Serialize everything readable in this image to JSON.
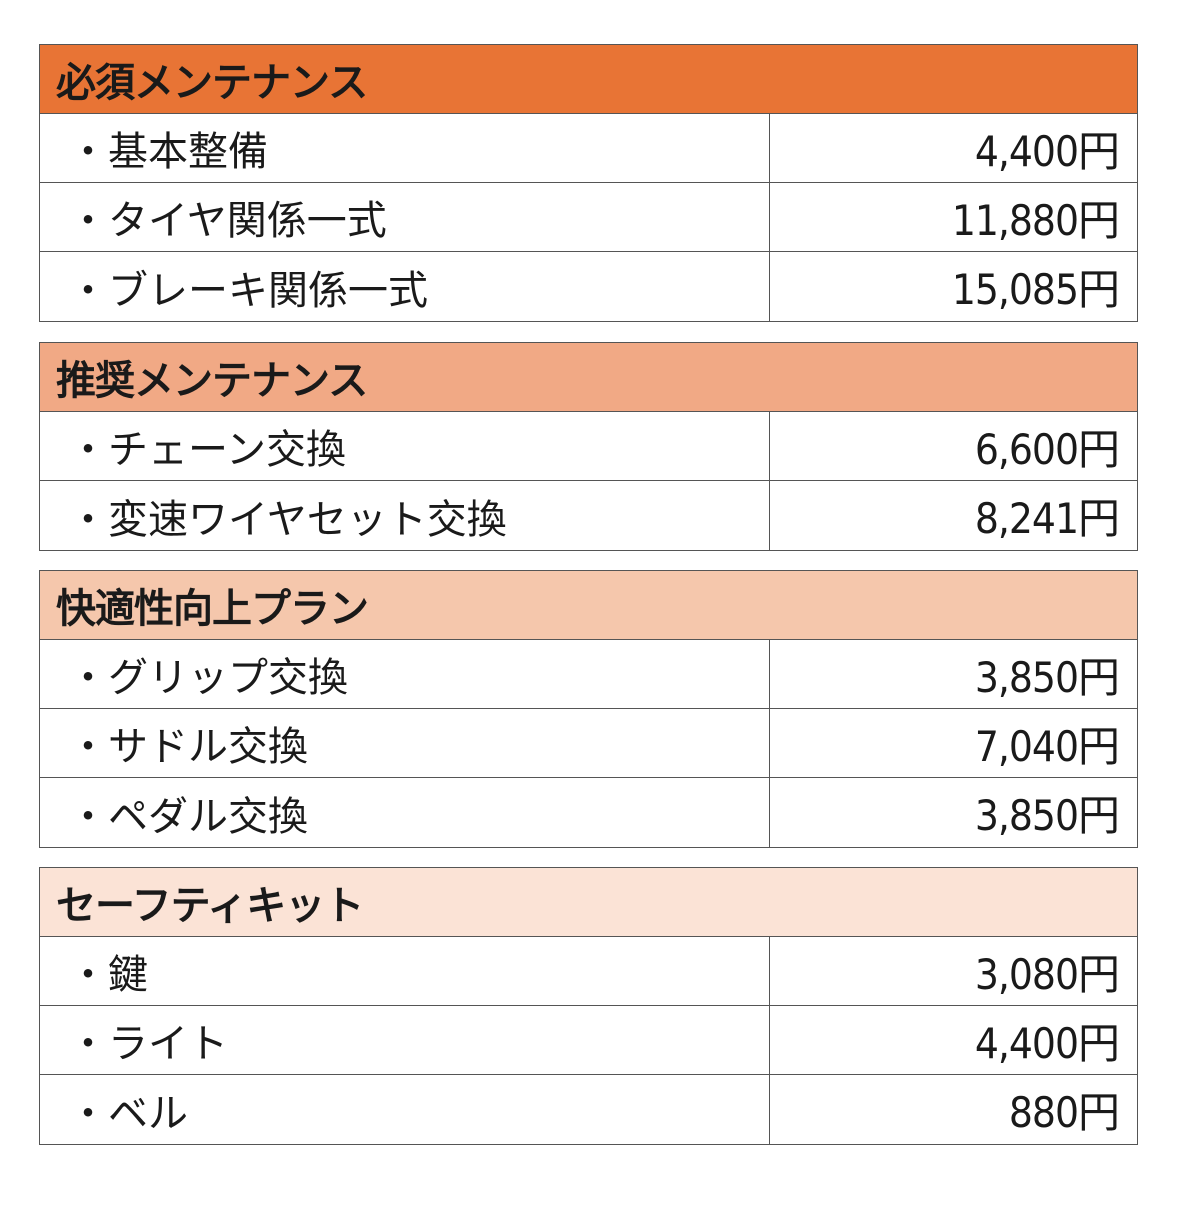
{
  "sections": [
    {
      "title": "必須メンテナンス",
      "header_color": "#E87435",
      "items": [
        {
          "bullet": "・",
          "name": "基本整備",
          "price": "4,400円"
        },
        {
          "bullet": "・",
          "name": "タイヤ関係一式",
          "price": "11,880円"
        },
        {
          "bullet": "・",
          "name": "ブレーキ関係一式",
          "price": "15,085円"
        }
      ]
    },
    {
      "title": "推奨メンテナンス",
      "header_color": "#F1A985",
      "items": [
        {
          "bullet": "・",
          "name": "チェーン交換",
          "price": "6,600円"
        },
        {
          "bullet": "・",
          "name": "変速ワイヤセット交換",
          "price": "8,241円"
        }
      ]
    },
    {
      "title": "快適性向上プラン",
      "header_color": "#F5C7AC",
      "items": [
        {
          "bullet": "・",
          "name": "グリップ交換",
          "price": "3,850円"
        },
        {
          "bullet": "・",
          "name": "サドル交換",
          "price": "7,040円"
        },
        {
          "bullet": "・",
          "name": "ペダル交換",
          "price": "3,850円"
        }
      ]
    },
    {
      "title": "セーフティキット",
      "header_color": "#FBE3D6",
      "items": [
        {
          "bullet": "・",
          "name": "鍵",
          "price": "3,080円"
        },
        {
          "bullet": "・",
          "name": "ライト",
          "price": "4,400円"
        },
        {
          "bullet": "・",
          "name": "ベル",
          "price": "880円"
        }
      ]
    }
  ]
}
